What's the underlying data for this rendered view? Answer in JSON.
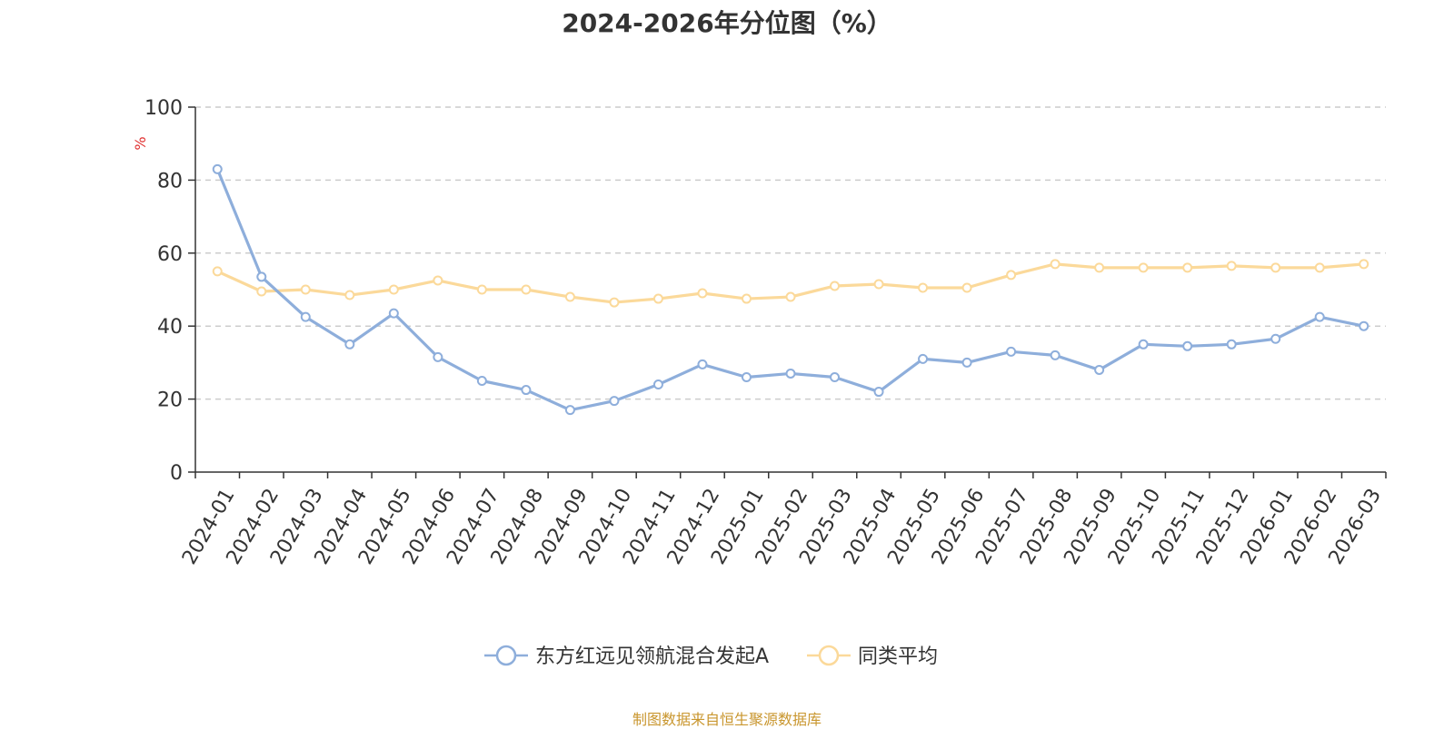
{
  "title": "2024-2026年分位图（%）",
  "source_note": "制图数据来自恒生聚源数据库",
  "colors": {
    "fund": "#8eaedb",
    "peer": "#fbd99a",
    "grid": "#cccccc",
    "axis": "#333333",
    "unit": "#e03030",
    "source": "#c9962e"
  },
  "chart_data": {
    "type": "line",
    "title": "2024-2026年分位图（%）",
    "ylabel": "%",
    "ylim": [
      0,
      100
    ],
    "yticks": [
      0,
      20,
      40,
      60,
      80,
      100
    ],
    "grid": true,
    "legend_position": "bottom-center",
    "categories": [
      "2024-01",
      "2024-02",
      "2024-03",
      "2024-04",
      "2024-05",
      "2024-06",
      "2024-07",
      "2024-08",
      "2024-09",
      "2024-10",
      "2024-11",
      "2024-12",
      "2025-01",
      "2025-02",
      "2025-03",
      "2025-04",
      "2025-05",
      "2025-06",
      "2025-07",
      "2025-08",
      "2025-09",
      "2025-10",
      "2025-11",
      "2025-12",
      "2026-01",
      "2026-02",
      "2026-03"
    ],
    "series": [
      {
        "name": "东方红远见领航混合发起A",
        "color": "#8eaedb",
        "values": [
          83,
          53.5,
          42.5,
          35,
          43.5,
          31.5,
          25,
          22.5,
          17,
          19.5,
          24,
          29.5,
          26,
          27,
          26,
          22,
          31,
          30,
          33,
          32,
          28,
          35,
          34.5,
          35,
          36.5,
          42.5,
          40
        ]
      },
      {
        "name": "同类平均",
        "color": "#fbd99a",
        "values": [
          55,
          49.5,
          50,
          48.5,
          50,
          52.5,
          50,
          50,
          48,
          46.5,
          47.5,
          49,
          47.5,
          48,
          51,
          51.5,
          50.5,
          50.5,
          54,
          57,
          56,
          56,
          56,
          56.5,
          56,
          56,
          57
        ]
      }
    ]
  }
}
